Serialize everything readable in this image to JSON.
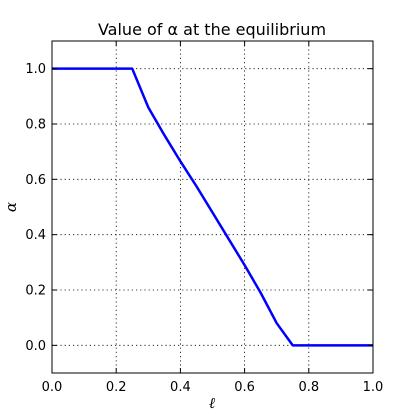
{
  "chart_data": {
    "type": "line",
    "title": "Value of α at the equilibrium",
    "xlabel": "ℓ",
    "ylabel": "α",
    "xlim": [
      0.0,
      1.0
    ],
    "ylim": [
      -0.1,
      1.1
    ],
    "xticks": [
      "0.0",
      "0.2",
      "0.4",
      "0.6",
      "0.8",
      "1.0"
    ],
    "yticks": [
      "0.0",
      "0.2",
      "0.4",
      "0.6",
      "0.8",
      "1.0"
    ],
    "grid": true,
    "series": [
      {
        "color": "#0000ff",
        "x": [
          0.0,
          0.25,
          0.3,
          0.35,
          0.4,
          0.45,
          0.5,
          0.55,
          0.6,
          0.65,
          0.7,
          0.75,
          0.8,
          0.9,
          1.0
        ],
        "y": [
          1.0,
          1.0,
          0.86,
          0.76,
          0.665,
          0.575,
          0.48,
          0.385,
          0.29,
          0.19,
          0.08,
          0.0,
          0.0,
          0.0,
          0.0
        ]
      }
    ]
  }
}
